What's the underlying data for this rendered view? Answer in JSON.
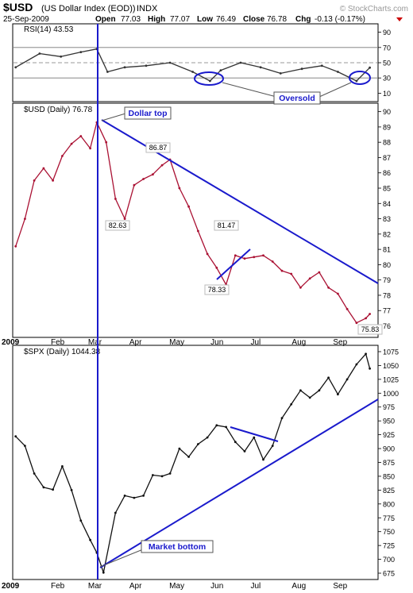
{
  "header": {
    "symbol": "$USD",
    "name": "(US Dollar Index (EOD))",
    "exchange": "INDX",
    "date": "25-Sep-2009",
    "open_label": "Open",
    "open": "77.03",
    "high_label": "High",
    "high": "77.07",
    "low_label": "Low",
    "low": "76.49",
    "close_label": "Close",
    "close": "76.78",
    "chg_label": "Chg",
    "chg": "-0.13 (-0.17%)",
    "watermark": "© StockCharts.com"
  },
  "chart_data": [
    {
      "type": "line",
      "title": "RSI(14) 43.53",
      "ylim": [
        0,
        100
      ],
      "yticks": [
        10,
        30,
        50,
        70,
        90
      ],
      "reference_lines": [
        30,
        50,
        70
      ],
      "annotations": [
        {
          "text": "Oversold"
        }
      ],
      "series": [
        {
          "x": [
            "2009-01-02",
            "2009-01-20",
            "2009-02-05",
            "2009-02-20",
            "2009-03-04",
            "2009-03-12",
            "2009-03-25",
            "2009-04-10",
            "2009-04-28",
            "2009-05-15",
            "2009-05-28",
            "2009-06-05",
            "2009-06-20",
            "2009-07-05",
            "2009-07-20",
            "2009-08-05",
            "2009-08-20",
            "2009-09-01",
            "2009-09-15",
            "2009-09-25"
          ],
          "values": [
            44,
            62,
            58,
            64,
            68,
            38,
            44,
            46,
            50,
            38,
            26,
            40,
            50,
            44,
            36,
            42,
            46,
            38,
            26,
            43.53
          ]
        }
      ]
    },
    {
      "type": "line",
      "title": "$USD (Daily) 76.78",
      "ylim": [
        75.3,
        90.5
      ],
      "yticks": [
        76,
        77,
        78,
        79,
        80,
        81,
        82,
        83,
        84,
        85,
        86,
        87,
        88,
        89,
        90
      ],
      "xticks": [
        "2009",
        "Feb",
        "Mar",
        "Apr",
        "May",
        "Jun",
        "Jul",
        "Aug",
        "Sep"
      ],
      "annotations": [
        {
          "text": "Dollar top"
        },
        {
          "text": "86.87"
        },
        {
          "text": "82.63"
        },
        {
          "text": "81.47"
        },
        {
          "text": "78.33"
        },
        {
          "text": "75.83"
        }
      ],
      "series": [
        {
          "x": [
            "2009-01-02",
            "2009-01-09",
            "2009-01-16",
            "2009-01-23",
            "2009-01-30",
            "2009-02-06",
            "2009-02-13",
            "2009-02-20",
            "2009-02-27",
            "2009-03-04",
            "2009-03-11",
            "2009-03-18",
            "2009-03-25",
            "2009-04-01",
            "2009-04-08",
            "2009-04-15",
            "2009-04-22",
            "2009-04-28",
            "2009-05-05",
            "2009-05-12",
            "2009-05-19",
            "2009-05-26",
            "2009-06-02",
            "2009-06-09",
            "2009-06-16",
            "2009-06-23",
            "2009-06-30",
            "2009-07-07",
            "2009-07-14",
            "2009-07-21",
            "2009-07-28",
            "2009-08-04",
            "2009-08-11",
            "2009-08-18",
            "2009-08-25",
            "2009-09-01",
            "2009-09-08",
            "2009-09-15",
            "2009-09-22",
            "2009-09-25"
          ],
          "values": [
            81.2,
            83.0,
            85.5,
            86.3,
            85.5,
            87.1,
            87.9,
            88.4,
            87.6,
            89.3,
            88.0,
            84.3,
            83.0,
            85.2,
            85.6,
            85.9,
            86.5,
            86.87,
            85.0,
            83.8,
            82.2,
            80.7,
            79.8,
            78.7,
            80.6,
            80.4,
            80.5,
            80.6,
            80.2,
            79.6,
            79.4,
            78.5,
            79.1,
            79.5,
            78.5,
            78.1,
            77.1,
            76.2,
            76.5,
            76.78
          ]
        }
      ]
    },
    {
      "type": "line",
      "title": "$SPX (Daily) 1044.38",
      "ylim": [
        665,
        1085
      ],
      "yticks": [
        675,
        700,
        725,
        750,
        775,
        800,
        825,
        850,
        875,
        900,
        925,
        950,
        975,
        1000,
        1025,
        1050,
        1075
      ],
      "xticks": [
        "2009",
        "Feb",
        "Mar",
        "Apr",
        "May",
        "Jun",
        "Jul",
        "Aug",
        "Sep"
      ],
      "annotations": [
        {
          "text": "Market bottom"
        }
      ],
      "series": [
        {
          "x": [
            "2009-01-02",
            "2009-01-09",
            "2009-01-16",
            "2009-01-23",
            "2009-01-30",
            "2009-02-06",
            "2009-02-13",
            "2009-02-20",
            "2009-02-27",
            "2009-03-04",
            "2009-03-09",
            "2009-03-18",
            "2009-03-25",
            "2009-04-01",
            "2009-04-08",
            "2009-04-15",
            "2009-04-22",
            "2009-04-28",
            "2009-05-05",
            "2009-05-12",
            "2009-05-19",
            "2009-05-26",
            "2009-06-02",
            "2009-06-09",
            "2009-06-16",
            "2009-06-23",
            "2009-06-30",
            "2009-07-07",
            "2009-07-14",
            "2009-07-21",
            "2009-07-28",
            "2009-08-04",
            "2009-08-11",
            "2009-08-18",
            "2009-08-25",
            "2009-09-01",
            "2009-09-08",
            "2009-09-15",
            "2009-09-22",
            "2009-09-25"
          ],
          "values": [
            922,
            905,
            855,
            830,
            826,
            868,
            825,
            770,
            735,
            712,
            676,
            784,
            815,
            811,
            815,
            852,
            850,
            855,
            900,
            885,
            908,
            920,
            942,
            939,
            912,
            895,
            920,
            880,
            905,
            955,
            980,
            1005,
            992,
            1005,
            1028,
            998,
            1025,
            1052,
            1071,
            1044.38
          ]
        }
      ]
    }
  ]
}
